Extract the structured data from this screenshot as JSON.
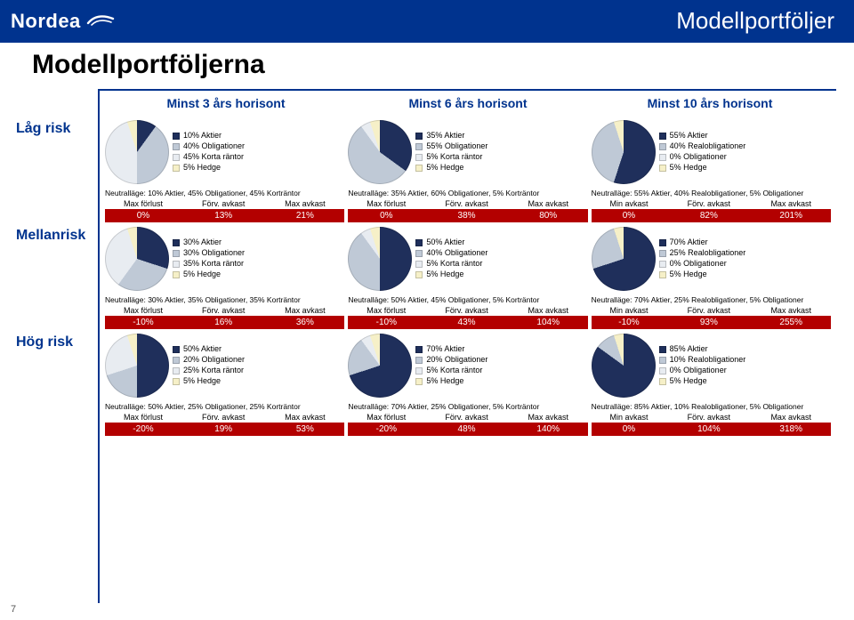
{
  "brand": {
    "name": "Nordea"
  },
  "corner_title": "Modellportföljer",
  "page_title": "Modellportföljerna",
  "page_number": "7",
  "column_headers": [
    "Minst 3 års horisont",
    "Minst 6 års horisont",
    "Minst 10 års horisont"
  ],
  "row_labels": [
    "Låg risk",
    "Mellanrisk",
    "Hög risk"
  ],
  "palette": {
    "aktier": "#1f2f5b",
    "oblig": "#bfc9d6",
    "korta": "#e8ecf1",
    "hedge": "#f6f0c8",
    "realoblig": "#bfc9d6",
    "oblig_zero": "#e8ecf1"
  },
  "stats_band_color": "#b30000",
  "cells": [
    [
      {
        "slices": [
          {
            "label": "10% Aktier",
            "pct": 10,
            "colorKey": "aktier"
          },
          {
            "label": "40% Obligationer",
            "pct": 40,
            "colorKey": "oblig"
          },
          {
            "label": "45% Korta räntor",
            "pct": 45,
            "colorKey": "korta"
          },
          {
            "label": "5% Hedge",
            "pct": 5,
            "colorKey": "hedge"
          }
        ],
        "neutral": "Neutralläge: 10% Aktier, 45% Obligationer, 45% Korträntor",
        "stat_labels": [
          "Max förlust",
          "Förv. avkast",
          "Max avkast"
        ],
        "stat_values": [
          "0%",
          "13%",
          "21%"
        ]
      },
      {
        "slices": [
          {
            "label": "35% Aktier",
            "pct": 35,
            "colorKey": "aktier"
          },
          {
            "label": "55% Obligationer",
            "pct": 55,
            "colorKey": "oblig"
          },
          {
            "label": "5% Korta räntor",
            "pct": 5,
            "colorKey": "korta"
          },
          {
            "label": "5% Hedge",
            "pct": 5,
            "colorKey": "hedge"
          }
        ],
        "neutral": "Neutralläge: 35% Aktier, 60% Obligationer, 5% Korträntor",
        "stat_labels": [
          "Max förlust",
          "Förv. avkast",
          "Max avkast"
        ],
        "stat_values": [
          "0%",
          "38%",
          "80%"
        ]
      },
      {
        "slices": [
          {
            "label": "55% Aktier",
            "pct": 55,
            "colorKey": "aktier"
          },
          {
            "label": "40% Realobligationer",
            "pct": 40,
            "colorKey": "realoblig"
          },
          {
            "label": "0% Obligationer",
            "pct": 0,
            "colorKey": "oblig_zero"
          },
          {
            "label": "5% Hedge",
            "pct": 5,
            "colorKey": "hedge"
          }
        ],
        "neutral": "Neutralläge: 55% Aktier, 40% Realobligationer, 5% Obligationer",
        "stat_labels": [
          "Min avkast",
          "Förv. avkast",
          "Max avkast"
        ],
        "stat_values": [
          "0%",
          "82%",
          "201%"
        ]
      }
    ],
    [
      {
        "slices": [
          {
            "label": "30% Aktier",
            "pct": 30,
            "colorKey": "aktier"
          },
          {
            "label": "30% Obligationer",
            "pct": 30,
            "colorKey": "oblig"
          },
          {
            "label": "35% Korta räntor",
            "pct": 35,
            "colorKey": "korta"
          },
          {
            "label": "5% Hedge",
            "pct": 5,
            "colorKey": "hedge"
          }
        ],
        "neutral": "Neutralläge: 30% Aktier, 35% Obligationer, 35% Korträntor",
        "stat_labels": [
          "Max förlust",
          "Förv. avkast",
          "Max avkast"
        ],
        "stat_values": [
          "-10%",
          "16%",
          "36%"
        ]
      },
      {
        "slices": [
          {
            "label": "50% Aktier",
            "pct": 50,
            "colorKey": "aktier"
          },
          {
            "label": "40% Obligationer",
            "pct": 40,
            "colorKey": "oblig"
          },
          {
            "label": "5% Korta räntor",
            "pct": 5,
            "colorKey": "korta"
          },
          {
            "label": "5% Hedge",
            "pct": 5,
            "colorKey": "hedge"
          }
        ],
        "neutral": "Neutralläge: 50% Aktier, 45% Obligationer, 5% Korträntor",
        "stat_labels": [
          "Max förlust",
          "Förv. avkast",
          "Max avkast"
        ],
        "stat_values": [
          "-10%",
          "43%",
          "104%"
        ]
      },
      {
        "slices": [
          {
            "label": "70% Aktier",
            "pct": 70,
            "colorKey": "aktier"
          },
          {
            "label": "25% Realobligationer",
            "pct": 25,
            "colorKey": "realoblig"
          },
          {
            "label": "0% Obligationer",
            "pct": 0,
            "colorKey": "oblig_zero"
          },
          {
            "label": "5% Hedge",
            "pct": 5,
            "colorKey": "hedge"
          }
        ],
        "neutral": "Neutralläge: 70% Aktier, 25% Realobligationer, 5% Obligationer",
        "stat_labels": [
          "Min avkast",
          "Förv. avkast",
          "Max avkast"
        ],
        "stat_values": [
          "-10%",
          "93%",
          "255%"
        ]
      }
    ],
    [
      {
        "slices": [
          {
            "label": "50% Aktier",
            "pct": 50,
            "colorKey": "aktier"
          },
          {
            "label": "20% Obligationer",
            "pct": 20,
            "colorKey": "oblig"
          },
          {
            "label": "25% Korta räntor",
            "pct": 25,
            "colorKey": "korta"
          },
          {
            "label": "5% Hedge",
            "pct": 5,
            "colorKey": "hedge"
          }
        ],
        "neutral": "Neutralläge: 50% Aktier, 25% Obligationer, 25% Korträntor",
        "stat_labels": [
          "Max förlust",
          "Förv. avkast",
          "Max avkast"
        ],
        "stat_values": [
          "-20%",
          "19%",
          "53%"
        ]
      },
      {
        "slices": [
          {
            "label": "70% Aktier",
            "pct": 70,
            "colorKey": "aktier"
          },
          {
            "label": "20% Obligationer",
            "pct": 20,
            "colorKey": "oblig"
          },
          {
            "label": "5% Korta räntor",
            "pct": 5,
            "colorKey": "korta"
          },
          {
            "label": "5% Hedge",
            "pct": 5,
            "colorKey": "hedge"
          }
        ],
        "neutral": "Neutralläge: 70% Aktier, 25% Obligationer, 5% Korträntor",
        "stat_labels": [
          "Max förlust",
          "Förv. avkast",
          "Max avkast"
        ],
        "stat_values": [
          "-20%",
          "48%",
          "140%"
        ]
      },
      {
        "slices": [
          {
            "label": "85% Aktier",
            "pct": 85,
            "colorKey": "aktier"
          },
          {
            "label": "10% Realobligationer",
            "pct": 10,
            "colorKey": "realoblig"
          },
          {
            "label": "0% Obligationer",
            "pct": 0,
            "colorKey": "oblig_zero"
          },
          {
            "label": "5% Hedge",
            "pct": 5,
            "colorKey": "hedge"
          }
        ],
        "neutral": "Neutralläge: 85% Aktier, 10% Realobligationer, 5% Obligationer",
        "stat_labels": [
          "Min avkast",
          "Förv. avkast",
          "Max avkast"
        ],
        "stat_values": [
          "0%",
          "104%",
          "318%"
        ]
      }
    ]
  ]
}
